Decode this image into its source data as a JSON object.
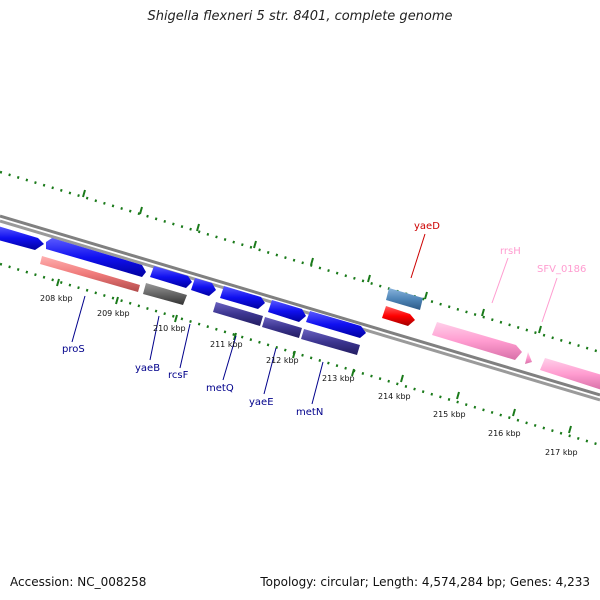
{
  "title": "Shigella flexneri 5 str. 8401, complete genome",
  "footer": {
    "accession": "Accession: NC_008258",
    "topology": "Topology: circular; Length: 4,574,284 bp; Genes: 4,233"
  },
  "ticks": [
    "208 kbp",
    "209 kbp",
    "210 kbp",
    "211 kbp",
    "212 kbp",
    "213 kbp",
    "214 kbp",
    "215 kbp",
    "216 kbp",
    "217 kbp"
  ],
  "genes": {
    "prosS": "proS",
    "yaeB": "yaeB",
    "rcsF": "rcsF",
    "metQ": "metQ",
    "yaeE": "yaeE",
    "metN": "metN",
    "yaeD": "yaeD",
    "rrsH": "rrsH",
    "sfv": "SFV_0186"
  },
  "colors": {
    "cds_blue": "#0d0df0",
    "cds_dark": "#3c3590",
    "pseudo_red": "#f07a7a",
    "gray_gene": "#666666",
    "yaeD_blue": "#4f86b8",
    "red_gene": "#ff0000",
    "rrna_pink": "#ff9cd0",
    "tick_green": "#1a7a1a",
    "backbone": "#808080"
  }
}
